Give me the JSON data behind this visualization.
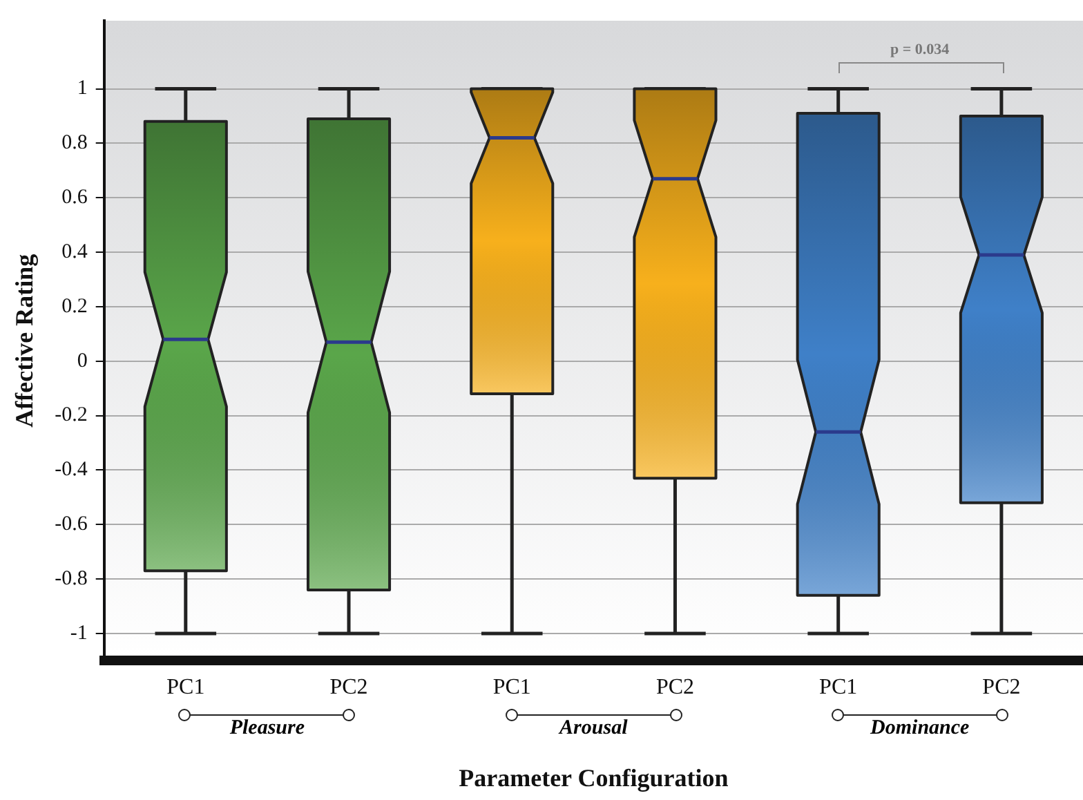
{
  "chart_data": {
    "type": "box",
    "xlabel": "Parameter Configuration",
    "ylabel": "Affective Rating",
    "categories": [
      "PC1",
      "PC2",
      "PC1",
      "PC2",
      "PC1",
      "PC2"
    ],
    "boxes": [
      {
        "low": -1,
        "q1": -0.77,
        "median": 0.08,
        "q3": 0.88,
        "high": 1
      },
      {
        "low": -1,
        "q1": -0.84,
        "median": 0.07,
        "q3": 0.89,
        "high": 1
      },
      {
        "low": -1,
        "q1": -0.12,
        "median": 0.82,
        "q3": 1,
        "high": 1
      },
      {
        "low": -1,
        "q1": -0.43,
        "median": 0.67,
        "q3": 1,
        "high": 1
      },
      {
        "low": -1,
        "q1": -0.86,
        "median": -0.26,
        "q3": 0.91,
        "high": 1
      },
      {
        "low": -1,
        "q1": -0.52,
        "median": 0.39,
        "q3": 0.9,
        "high": 1
      }
    ],
    "colors": [
      "#5aa64a",
      "#5aa64a",
      "#f7b01c",
      "#f7b01c",
      "#3f80c8",
      "#3f80c8"
    ],
    "ylim": [
      -1.1,
      1.25
    ],
    "yticks": [
      -1,
      -0.8,
      -0.6,
      -0.4,
      -0.2,
      0,
      0.2,
      0.4,
      0.6,
      0.8,
      1
    ],
    "grid": "y",
    "annotations": [
      "Pleasure",
      "Arousal",
      "Dominance",
      "p = 0.034"
    ]
  }
}
